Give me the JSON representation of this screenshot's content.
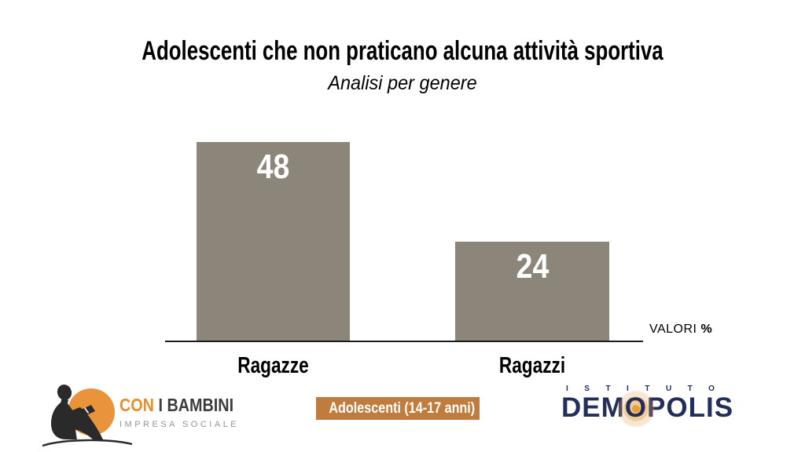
{
  "title": "Adolescenti che non praticano alcuna attività sportiva",
  "subtitle": "Analisi per genere",
  "chart_data": {
    "type": "bar",
    "categories": [
      "Ragazze",
      "Ragazzi"
    ],
    "values": [
      48,
      24
    ],
    "title": "Adolescenti che non praticano alcuna attività sportiva",
    "subtitle": "Analisi per genere",
    "unit_label": "VALORI %",
    "ylabel": "",
    "xlabel": "",
    "ylim": [
      0,
      53
    ],
    "grid": false,
    "legend": "none",
    "bar_color": "#8c857a",
    "value_label_color": "#ffffff"
  },
  "axis": {
    "label_regular": "VALORI",
    "label_bold": "%"
  },
  "footer": {
    "con_i_bambini": {
      "con": "CON",
      "i_bambini": "I BAMBINI",
      "tagline": "IMPRESA SOCIALE",
      "orange": "#e78e2d",
      "dark": "#3d3d3d"
    },
    "badge": {
      "label": "Adolescenti (14-17 anni)",
      "bg": "#c07c3e",
      "text_color": "#ffffff"
    },
    "demopolis": {
      "istituto": "ISTITUTO",
      "name_parts": [
        "DEM",
        "O",
        "POLIS"
      ],
      "navy": "#242e5c",
      "orange": "#e89a33"
    }
  }
}
